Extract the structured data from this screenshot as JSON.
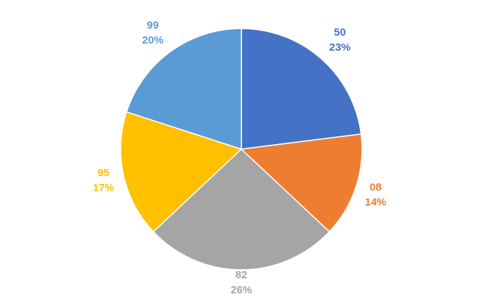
{
  "chart_data": {
    "type": "pie",
    "categories": [
      "50",
      "08",
      "82",
      "95",
      "99"
    ],
    "values": [
      23,
      14,
      26,
      17,
      20
    ],
    "labels": [
      {
        "category": "50",
        "percent": "23%"
      },
      {
        "category": "08",
        "percent": "14%"
      },
      {
        "category": "82",
        "percent": "26%"
      },
      {
        "category": "95",
        "percent": "17%"
      },
      {
        "category": "99",
        "percent": "20%"
      }
    ],
    "colors": [
      "#4472C4",
      "#ED7D31",
      "#A5A5A5",
      "#FFC000",
      "#5B9BD5"
    ],
    "start_angle": "12 o'clock",
    "direction": "clockwise",
    "legend": "none"
  }
}
